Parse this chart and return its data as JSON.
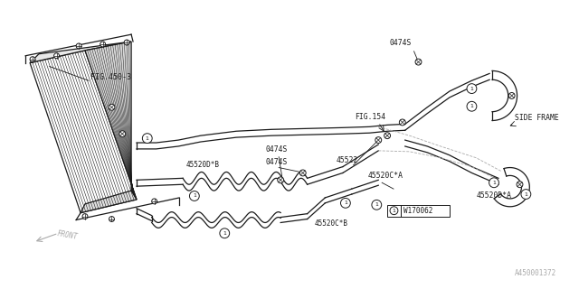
{
  "bg_color": "#ffffff",
  "line_color": "#1a1a1a",
  "gray_color": "#aaaaaa",
  "fig_width": 6.4,
  "fig_height": 3.2,
  "dpi": 100,
  "labels": {
    "fig450": "FIG.450-3",
    "fig154": "FIG.154",
    "side_frame": "SIDE FRAME",
    "front": "FRONT",
    "part_0474S_top": "0474S",
    "part_0474S_mid1": "0474S",
    "part_0474S_mid2": "0474S",
    "part_45520C_A": "45520C*A",
    "part_45520D_A": "45520D*A",
    "part_45520D_B": "45520D*B",
    "part_45520C_B": "45520C*B",
    "part_45522": "45522",
    "watermark": "W170062",
    "ref_num": "A450001372"
  }
}
